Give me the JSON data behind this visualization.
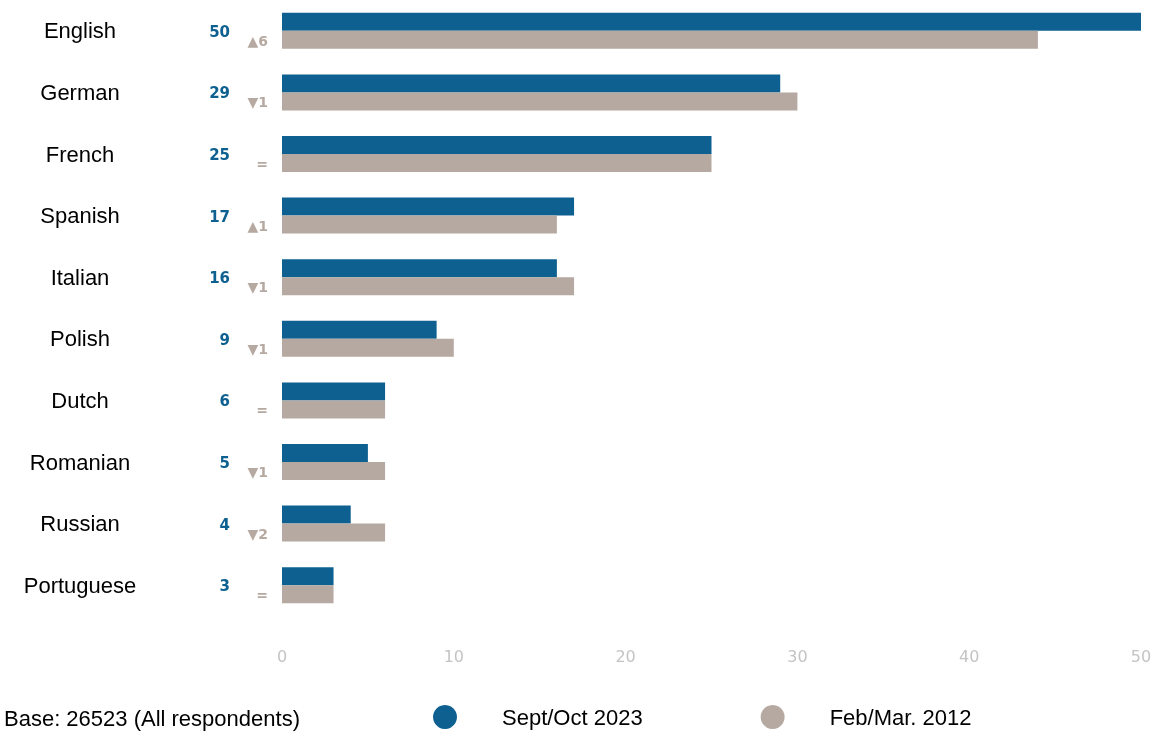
{
  "chart_data": {
    "type": "bar",
    "orientation": "horizontal",
    "categories": [
      "English",
      "German",
      "French",
      "Spanish",
      "Italian",
      "Polish",
      "Dutch",
      "Romanian",
      "Russian",
      "Portuguese"
    ],
    "series": [
      {
        "name": "Sept/Oct 2023",
        "color": "#0e6090",
        "values": [
          50,
          29,
          25,
          17,
          16,
          9,
          6,
          5,
          4,
          3
        ],
        "value_labels": [
          "50",
          "29",
          "25",
          "17",
          "16",
          "9",
          "6",
          "5",
          "4",
          "3"
        ]
      },
      {
        "name": "Feb/Mar. 2012",
        "color": "#b6a9a1",
        "values": [
          44,
          30,
          25,
          16,
          17,
          10,
          6,
          6,
          6,
          3
        ]
      }
    ],
    "xlim": [
      0,
      50
    ],
    "xticks": [
      0,
      10,
      20,
      30,
      40,
      50
    ],
    "grid": false,
    "legend": "bottom",
    "annotations": [
      "▲6",
      "▼1",
      "=",
      "▲1",
      "▼1",
      "▼1",
      "=",
      "▼1",
      "▼2",
      "=",
      "Base: 26523 (All respondents)"
    ]
  }
}
